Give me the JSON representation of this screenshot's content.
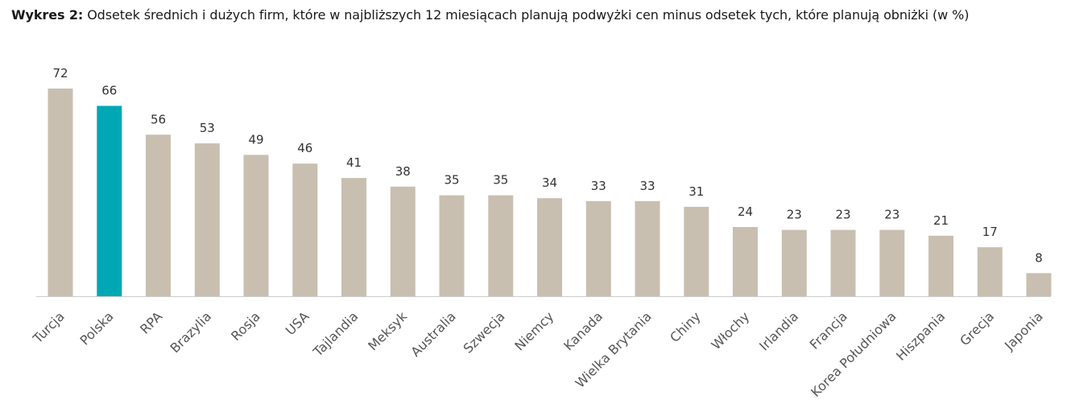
{
  "title": {
    "label": "Wykres 2:",
    "text": "Odsetek średnich i dużych firm, które w najbliższych 12 miesiącach planują podwyżki cen minus odsetek tych, które planują obniżki (w %)"
  },
  "colors": {
    "bar": "#c8bfb0",
    "highlight": "#00a8b5",
    "axis": "#cccccc"
  },
  "chart_data": {
    "type": "bar",
    "title": "Odsetek średnich i dużych firm, które w najbliższych 12 miesiącach planują podwyżki cen minus odsetek tych, które planują obniżki (w %)",
    "xlabel": "",
    "ylabel": "",
    "ylim": [
      0,
      72
    ],
    "grid": false,
    "categories": [
      "Turcja",
      "Polska",
      "RPA",
      "Brazylia",
      "Rosja",
      "USA",
      "Tajlandia",
      "Meksyk",
      "Australia",
      "Szwecja",
      "Niemcy",
      "Kanada",
      "Wielka Brytania",
      "Chiny",
      "Włochy",
      "Irlandia",
      "Francja",
      "Korea Południowa",
      "Hiszpania",
      "Grecja",
      "Japonia"
    ],
    "values": [
      72,
      66,
      56,
      53,
      49,
      46,
      41,
      38,
      35,
      35,
      34,
      33,
      33,
      31,
      24,
      23,
      23,
      23,
      21,
      17,
      8
    ],
    "highlight": "Polska"
  }
}
